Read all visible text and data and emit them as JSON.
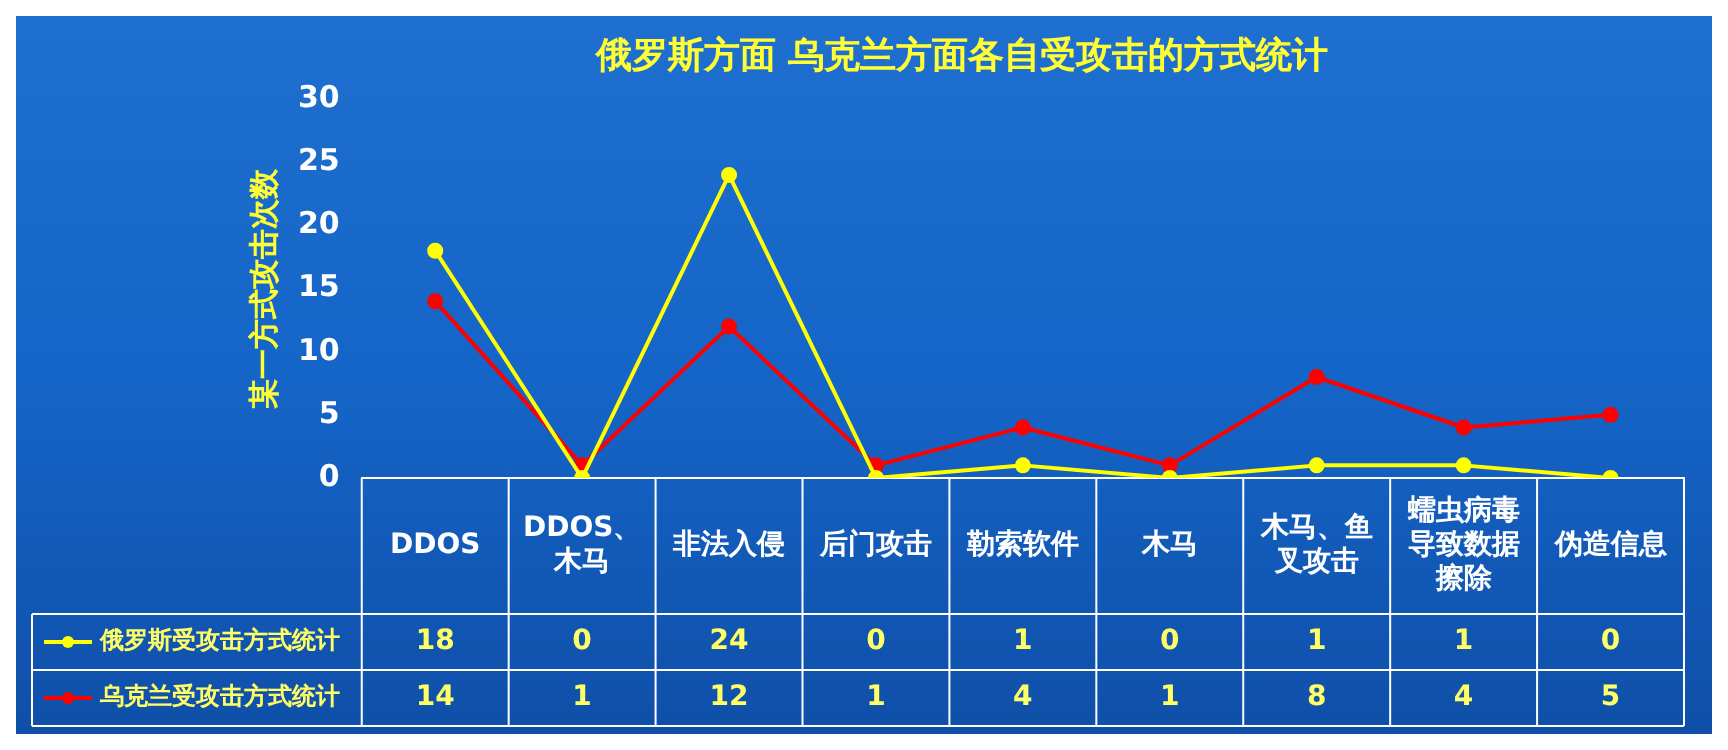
{
  "chart_data": {
    "type": "line",
    "title": "俄罗斯方面 乌克兰方面各自受攻击的方式统计",
    "ylabel": "某一方式攻击次数",
    "categories": [
      "DDOS",
      "DDOS、木马",
      "非法入侵",
      "后门攻击",
      "勒索软件",
      "木马",
      "木马、鱼叉攻击",
      "蠕虫病毒导致数据擦除",
      "伪造信息"
    ],
    "series": [
      {
        "name": "俄罗斯受攻击方式统计",
        "color": "#ffff00",
        "values": [
          18,
          0,
          24,
          0,
          1,
          0,
          1,
          1,
          0
        ]
      },
      {
        "name": "乌克兰受攻击方式统计",
        "color": "#ff0000",
        "values": [
          14,
          1,
          12,
          1,
          4,
          1,
          8,
          4,
          5
        ]
      }
    ],
    "ylim": [
      0,
      30
    ],
    "yticks": [
      0,
      5,
      10,
      15,
      20,
      25,
      30
    ],
    "grid": false,
    "marker": "circle",
    "line_style": "solid",
    "data_labels": true,
    "legend": "bottom left"
  }
}
